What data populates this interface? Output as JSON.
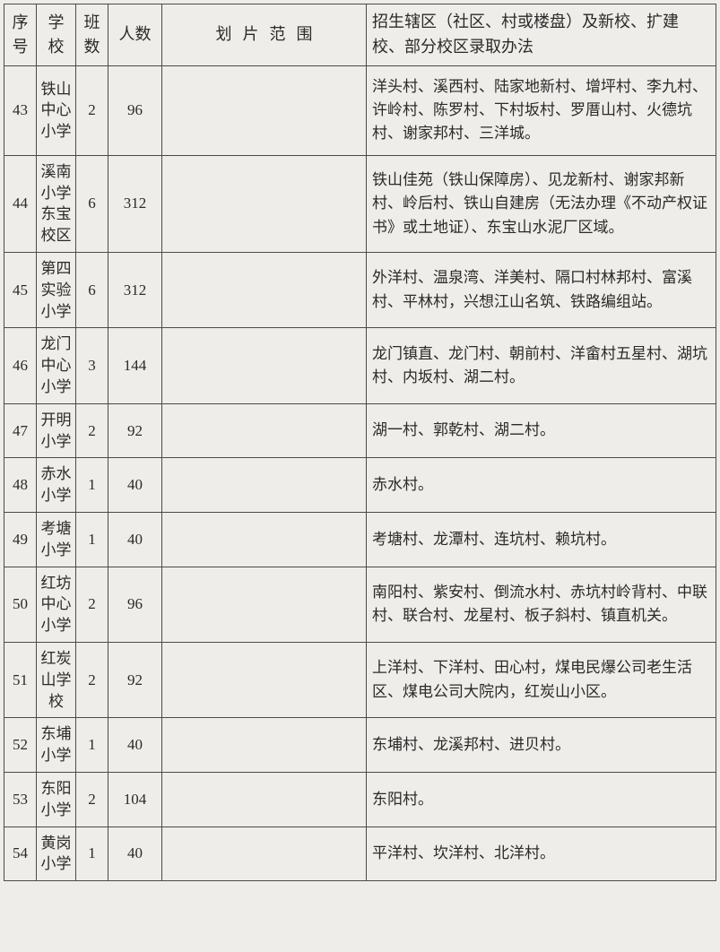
{
  "table": {
    "headers": {
      "seq": "序号",
      "school": "学校",
      "classes": "班数",
      "people": "人数",
      "area": "划片范围",
      "desc": "招生辖区（社区、村或楼盘）及新校、扩建校、部分校区录取办法"
    },
    "rows": [
      {
        "seq": "43",
        "school": "铁山中心小学",
        "classes": "2",
        "people": "96",
        "area": "",
        "desc": "洋头村、溪西村、陆家地新村、增坪村、李九村、许岭村、陈罗村、下村坂村、罗厝山村、火德坑村、谢家邦村、三洋城。"
      },
      {
        "seq": "44",
        "school": "溪南小学东宝校区",
        "classes": "6",
        "people": "312",
        "area": "",
        "desc": "铁山佳苑（铁山保障房）、见龙新村、谢家邦新村、岭后村、铁山自建房（无法办理《不动产权证书》或土地证）、东宝山水泥厂区域。"
      },
      {
        "seq": "45",
        "school": "第四实验小学",
        "classes": "6",
        "people": "312",
        "area": "",
        "desc": "外洋村、温泉湾、洋美村、隔口村林邦村、富溪村、平林村，兴想江山名筑、铁路编组站。"
      },
      {
        "seq": "46",
        "school": "龙门中心小学",
        "classes": "3",
        "people": "144",
        "area": "",
        "desc": "龙门镇直、龙门村、朝前村、洋畲村五星村、湖坑村、内坂村、湖二村。"
      },
      {
        "seq": "47",
        "school": "开明小学",
        "classes": "2",
        "people": "92",
        "area": "",
        "desc": "湖一村、郭乾村、湖二村。"
      },
      {
        "seq": "48",
        "school": "赤水小学",
        "classes": "1",
        "people": "40",
        "area": "",
        "desc": "赤水村。"
      },
      {
        "seq": "49",
        "school": "考塘小学",
        "classes": "1",
        "people": "40",
        "area": "",
        "desc": "考塘村、龙潭村、连坑村、赖坑村。"
      },
      {
        "seq": "50",
        "school": "红坊中心小学",
        "classes": "2",
        "people": "96",
        "area": "",
        "desc": "南阳村、紫安村、倒流水村、赤坑村岭背村、中联村、联合村、龙星村、板子斜村、镇直机关。"
      },
      {
        "seq": "51",
        "school": "红炭山学校",
        "classes": "2",
        "people": "92",
        "area": "",
        "desc": "上洋村、下洋村、田心村，煤电民爆公司老生活区、煤电公司大院内，红炭山小区。"
      },
      {
        "seq": "52",
        "school": "东埔小学",
        "classes": "1",
        "people": "40",
        "area": "",
        "desc": "东埔村、龙溪邦村、进贝村。"
      },
      {
        "seq": "53",
        "school": "东阳小学",
        "classes": "2",
        "people": "104",
        "area": "",
        "desc": "东阳村。"
      },
      {
        "seq": "54",
        "school": "黄岗小学",
        "classes": "1",
        "people": "40",
        "area": "",
        "desc": "平洋村、坎洋村、北洋村。"
      }
    ]
  }
}
